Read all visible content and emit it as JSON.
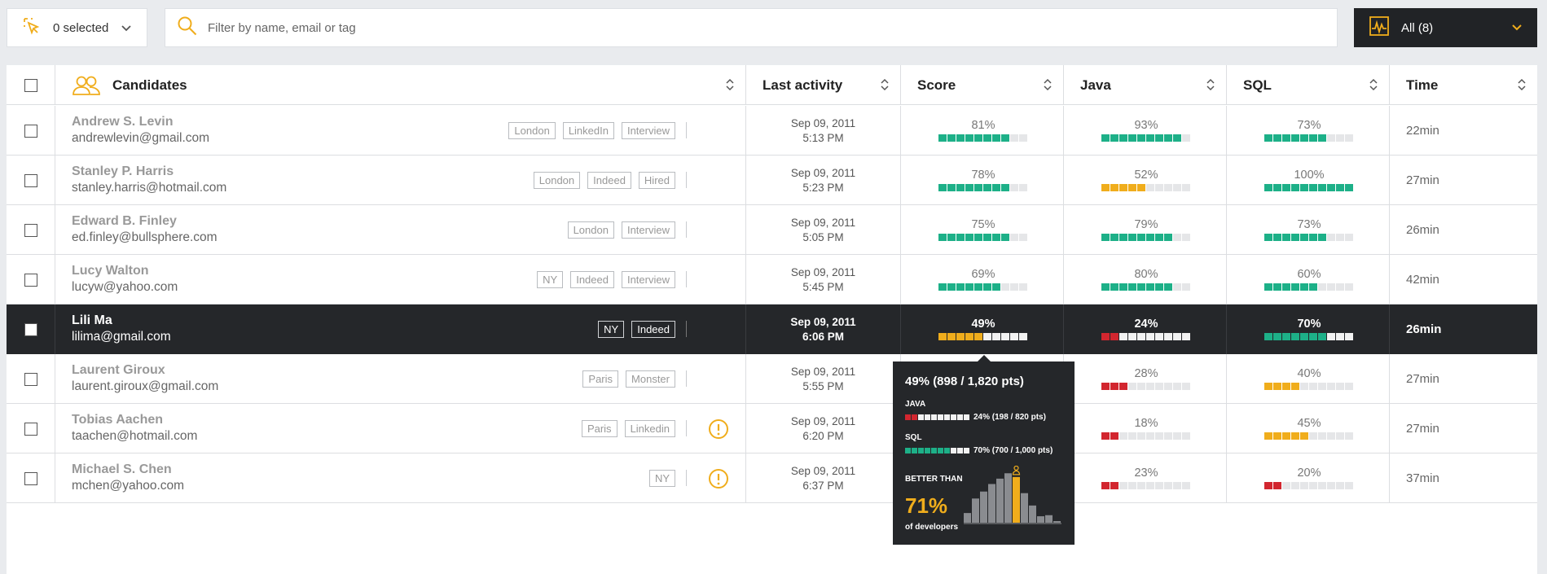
{
  "colors": {
    "green": "#1db088",
    "orange": "#f0ad1c",
    "red": "#d2262f",
    "empty": "#e5e6e8",
    "dark": "#25272a",
    "accent": "#f0ad1c"
  },
  "toolbar": {
    "selection_label": "0 selected",
    "selection_icon": "cursor-select-icon",
    "search_placeholder": "Filter by name, email or tag",
    "filter_label": "All (8)",
    "filter_icon": "activity-monitor-icon"
  },
  "columns": {
    "candidates": "Candidates",
    "last_activity": "Last activity",
    "score": "Score",
    "java": "Java",
    "sql": "SQL",
    "time": "Time"
  },
  "rows": [
    {
      "name": "Andrew S. Levin",
      "email": "andrewlevin@gmail.com",
      "tags": [
        "London",
        "LinkedIn",
        "Interview"
      ],
      "warning": false,
      "date": "Sep 09, 2011",
      "time_of_day": "5:13 PM",
      "score": "81%",
      "java": "93%",
      "sql": "73%",
      "duration": "22min"
    },
    {
      "name": "Stanley P. Harris",
      "email": "stanley.harris@hotmail.com",
      "tags": [
        "London",
        "Indeed",
        "Hired"
      ],
      "warning": false,
      "date": "Sep 09, 2011",
      "time_of_day": "5:23 PM",
      "score": "78%",
      "java": "52%",
      "sql": "100%",
      "duration": "27min"
    },
    {
      "name": "Edward B. Finley",
      "email": "ed.finley@bullsphere.com",
      "tags": [
        "London",
        "Interview"
      ],
      "warning": false,
      "date": "Sep 09, 2011",
      "time_of_day": "5:05 PM",
      "score": "75%",
      "java": "79%",
      "sql": "73%",
      "duration": "26min"
    },
    {
      "name": "Lucy Walton",
      "email": "lucyw@yahoo.com",
      "tags": [
        "NY",
        "Indeed",
        "Interview"
      ],
      "warning": false,
      "date": "Sep 09, 2011",
      "time_of_day": "5:45 PM",
      "score": "69%",
      "java": "80%",
      "sql": "60%",
      "duration": "42min"
    },
    {
      "name": "Lili Ma",
      "email": "lilima@gmail.com",
      "tags": [
        "NY",
        "Indeed"
      ],
      "warning": false,
      "date": "Sep 09, 2011",
      "time_of_day": "6:06 PM",
      "score": "49%",
      "java": "24%",
      "sql": "70%",
      "duration": "26min",
      "active": true
    },
    {
      "name": "Laurent Giroux",
      "email": "laurent.giroux@gmail.com",
      "tags": [
        "Paris",
        "Monster"
      ],
      "warning": false,
      "date": "Sep 09, 2011",
      "time_of_day": "5:55 PM",
      "score": "",
      "java": "28%",
      "sql": "40%",
      "duration": "27min"
    },
    {
      "name": "Tobias Aachen",
      "email": "taachen@hotmail.com",
      "tags": [
        "Paris",
        "Linkedin"
      ],
      "warning": true,
      "date": "Sep 09, 2011",
      "time_of_day": "6:20 PM",
      "score": "",
      "java": "18%",
      "sql": "45%",
      "duration": "27min"
    },
    {
      "name": "Michael S. Chen",
      "email": "mchen@yahoo.com",
      "tags": [
        "NY"
      ],
      "warning": true,
      "date": "Sep 09, 2011",
      "time_of_day": "6:37 PM",
      "score": "",
      "java": "23%",
      "sql": "20%",
      "duration": "37min"
    }
  ],
  "tooltip": {
    "title": "49% (898 / 1,820 pts)",
    "java_label": "JAVA",
    "java_value": "24% (198 / 820 pts)",
    "java_pct": 24,
    "sql_label": "SQL",
    "sql_value": "70% (700 / 1,000 pts)",
    "sql_pct": 70,
    "better_than_label": "BETTER THAN",
    "better_than_value": "71%",
    "developers_label": "of developers",
    "histogram": [
      0.18,
      0.45,
      0.58,
      0.72,
      0.82,
      0.92,
      0.85,
      0.55,
      0.32,
      0.12,
      0.14,
      0.03
    ],
    "histogram_highlight_index": 6
  }
}
